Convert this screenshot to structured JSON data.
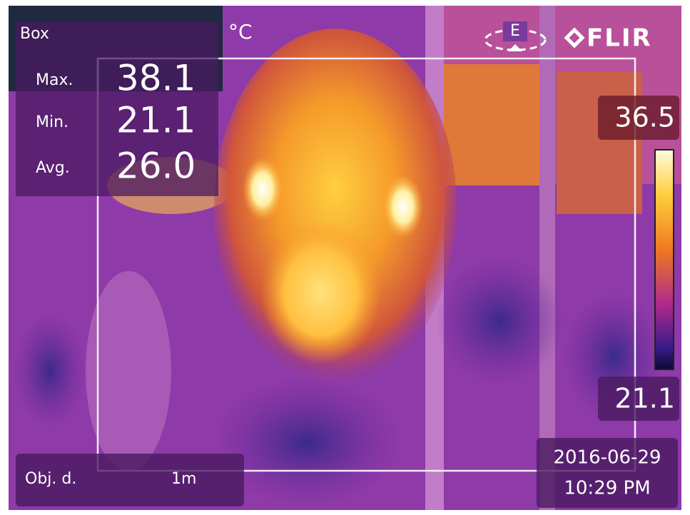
{
  "header": {
    "mode": "Box",
    "unit": "°C",
    "compass": "E",
    "brand": "FLIR"
  },
  "measurements": [
    {
      "label": "Max.",
      "value": "38.1"
    },
    {
      "label": "Min.",
      "value": "21.1"
    },
    {
      "label": "Avg.",
      "value": "26.0"
    }
  ],
  "scale": {
    "max": "36.5",
    "min": "21.1"
  },
  "footer": {
    "distance_label": "Obj. d.",
    "distance": "1m",
    "date": "2016-06-29",
    "time": "10:29 PM"
  }
}
